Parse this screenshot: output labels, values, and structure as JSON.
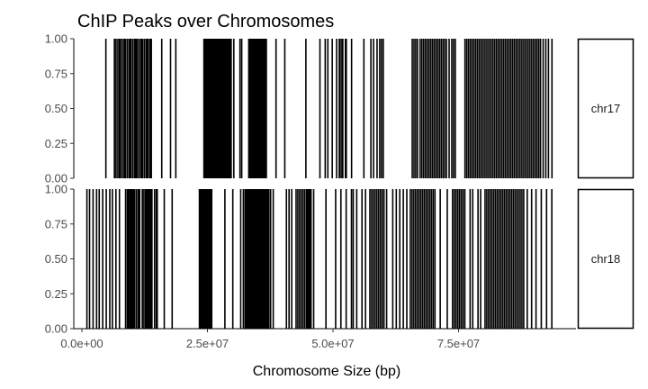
{
  "chart_data": {
    "type": "rug",
    "title": "ChIP Peaks over Chromosomes",
    "xlabel": "Chromosome Size (bp)",
    "ylabel": "",
    "xlim": [
      0,
      100000000
    ],
    "ylim": [
      0,
      1
    ],
    "x_ticks": [
      0,
      25000000,
      50000000,
      75000000
    ],
    "x_tick_labels": [
      "0.0e+00",
      "2.5e+07",
      "5.0e+07",
      "7.5e+07"
    ],
    "y_ticks": [
      0,
      0.25,
      0.5,
      0.75,
      1
    ],
    "y_tick_labels": [
      "0.00",
      "0.25",
      "0.50",
      "0.75",
      "1.00"
    ],
    "grid": false,
    "facets": [
      {
        "label": "chr17",
        "peaks": [
          4775000,
          6475000,
          6650000,
          7000000,
          7350000,
          7525000,
          7700000,
          8050000,
          8400000,
          8575000,
          8750000,
          9100000,
          9450000,
          9625000,
          9800000,
          10150000,
          10500000,
          10675000,
          10850000,
          11025000,
          11375000,
          11725000,
          11900000,
          12075000,
          12425000,
          12775000,
          12950000,
          13125000,
          13475000,
          13650000,
          13825000,
          15900000,
          17650000,
          18700000,
          24300000,
          24475000,
          24650000,
          24825000,
          25000000,
          25175000,
          25350000,
          25525000,
          25700000,
          25875000,
          26050000,
          26225000,
          26400000,
          26575000,
          26750000,
          26925000,
          27100000,
          27275000,
          27450000,
          27625000,
          27800000,
          27975000,
          28150000,
          28325000,
          28500000,
          28675000,
          28850000,
          29025000,
          29200000,
          29375000,
          29550000,
          29725000,
          30250000,
          31475000,
          31825000,
          33225000,
          33400000,
          33575000,
          33750000,
          33925000,
          34100000,
          34275000,
          34450000,
          34625000,
          34800000,
          34975000,
          35150000,
          35325000,
          35500000,
          35675000,
          35850000,
          36025000,
          36200000,
          36375000,
          36550000,
          36725000,
          38650000,
          40400000,
          44600000,
          47400000,
          48450000,
          48975000,
          49850000,
          50725000,
          51250000,
          51425000,
          51775000,
          51950000,
          52475000,
          52650000,
          53700000,
          56150000,
          57550000,
          58075000,
          58775000,
          59300000,
          59650000,
          60000000,
          65775000,
          66125000,
          66475000,
          66825000,
          67350000,
          67700000,
          68050000,
          68400000,
          68750000,
          69100000,
          69450000,
          69800000,
          70150000,
          70500000,
          70850000,
          71200000,
          71550000,
          71900000,
          72250000,
          72600000,
          73125000,
          73650000,
          74000000,
          74350000,
          76275000,
          76625000,
          76975000,
          77325000,
          77675000,
          78025000,
          78375000,
          78725000,
          79075000,
          79425000,
          79775000,
          80125000,
          80475000,
          80825000,
          81175000,
          81525000,
          81875000,
          82225000,
          82575000,
          82925000,
          83275000,
          83625000,
          83975000,
          84325000,
          84675000,
          85025000,
          85375000,
          85725000,
          86075000,
          86425000,
          86775000,
          87125000,
          87475000,
          87825000,
          88175000,
          88525000,
          88875000,
          89225000,
          89575000,
          89925000,
          90275000,
          90625000,
          90975000,
          91325000,
          91850000,
          92375000,
          92900000,
          93600000
        ]
      },
      {
        "label": "chr18",
        "peaks": [
          1000000,
          1525000,
          2225000,
          2925000,
          3450000,
          4150000,
          4850000,
          5550000,
          6075000,
          6775000,
          7475000,
          8700000,
          9050000,
          9225000,
          9400000,
          9575000,
          9750000,
          9925000,
          10100000,
          10275000,
          10450000,
          10800000,
          11150000,
          11325000,
          11500000,
          12025000,
          12200000,
          12550000,
          12725000,
          12900000,
          13075000,
          13250000,
          13425000,
          13600000,
          13775000,
          13950000,
          14475000,
          14825000,
          15000000,
          16400000,
          17975000,
          23400000,
          23575000,
          23750000,
          23925000,
          24100000,
          24275000,
          24450000,
          24625000,
          24800000,
          24975000,
          25150000,
          25325000,
          25500000,
          25675000,
          25850000,
          28475000,
          30050000,
          31625000,
          32150000,
          32500000,
          32675000,
          32850000,
          33025000,
          33200000,
          33375000,
          33550000,
          33725000,
          33900000,
          34075000,
          34250000,
          34425000,
          34600000,
          34775000,
          34950000,
          35125000,
          35300000,
          35475000,
          35650000,
          35825000,
          36000000,
          36175000,
          36350000,
          36525000,
          36700000,
          36875000,
          37050000,
          37225000,
          37575000,
          38100000,
          40725000,
          41250000,
          41775000,
          42650000,
          43000000,
          43350000,
          43700000,
          44050000,
          44400000,
          44750000,
          44925000,
          45100000,
          45275000,
          45450000,
          45625000,
          46150000,
          48600000,
          50525000,
          51575000,
          52625000,
          53675000,
          54025000,
          54725000,
          55775000,
          56475000,
          57350000,
          57700000,
          58050000,
          58400000,
          58750000,
          59100000,
          59450000,
          59800000,
          60150000,
          60675000,
          61900000,
          62600000,
          63300000,
          64000000,
          64700000,
          65400000,
          65750000,
          66100000,
          66450000,
          66800000,
          67150000,
          67500000,
          67850000,
          68200000,
          68550000,
          68900000,
          69250000,
          69600000,
          69950000,
          70300000,
          71350000,
          72750000,
          73800000,
          74150000,
          74500000,
          74850000,
          75200000,
          75550000,
          75900000,
          76250000,
          77300000,
          77825000,
          78875000,
          79400000,
          80275000,
          80625000,
          80975000,
          81325000,
          81675000,
          82025000,
          82375000,
          82725000,
          83075000,
          83425000,
          83775000,
          84125000,
          84475000,
          84825000,
          85175000,
          85525000,
          85875000,
          86225000,
          86575000,
          86925000,
          87275000,
          87625000,
          87975000,
          88675000,
          89550000,
          90425000,
          91475000,
          92525000,
          93575000
        ]
      }
    ]
  }
}
